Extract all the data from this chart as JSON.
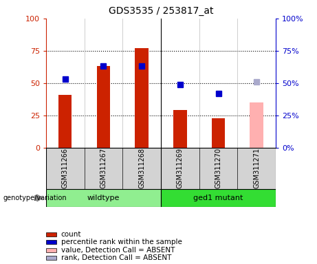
{
  "title": "GDS3535 / 253817_at",
  "samples": [
    "GSM311266",
    "GSM311267",
    "GSM311268",
    "GSM311269",
    "GSM311270",
    "GSM311271"
  ],
  "bar_values": [
    41,
    63,
    77,
    29,
    23,
    null
  ],
  "bar_absent_values": [
    null,
    null,
    null,
    null,
    null,
    35
  ],
  "rank_values": [
    53,
    63,
    63,
    49,
    42,
    null
  ],
  "rank_absent_values": [
    null,
    null,
    null,
    null,
    null,
    51
  ],
  "bar_color": "#cc2200",
  "bar_absent_color": "#ffb0b0",
  "rank_color": "#0000cc",
  "rank_absent_color": "#aaaacc",
  "ylim": [
    0,
    100
  ],
  "yticks": [
    0,
    25,
    50,
    75,
    100
  ],
  "wildtype_label": "wildtype",
  "mutant_label": "ged1 mutant",
  "wildtype_color": "#90ee90",
  "mutant_color": "#33dd33",
  "genotype_label": "genotype/variation",
  "legend_labels": [
    "count",
    "percentile rank within the sample",
    "value, Detection Call = ABSENT",
    "rank, Detection Call = ABSENT"
  ],
  "legend_colors": [
    "#cc2200",
    "#0000cc",
    "#ffb0b0",
    "#aaaacc"
  ],
  "bar_width": 0.35,
  "marker_size": 6,
  "left_axis_color": "#cc2200",
  "right_axis_color": "#0000cc",
  "fig_width": 4.61,
  "fig_height": 3.84,
  "dpi": 100
}
